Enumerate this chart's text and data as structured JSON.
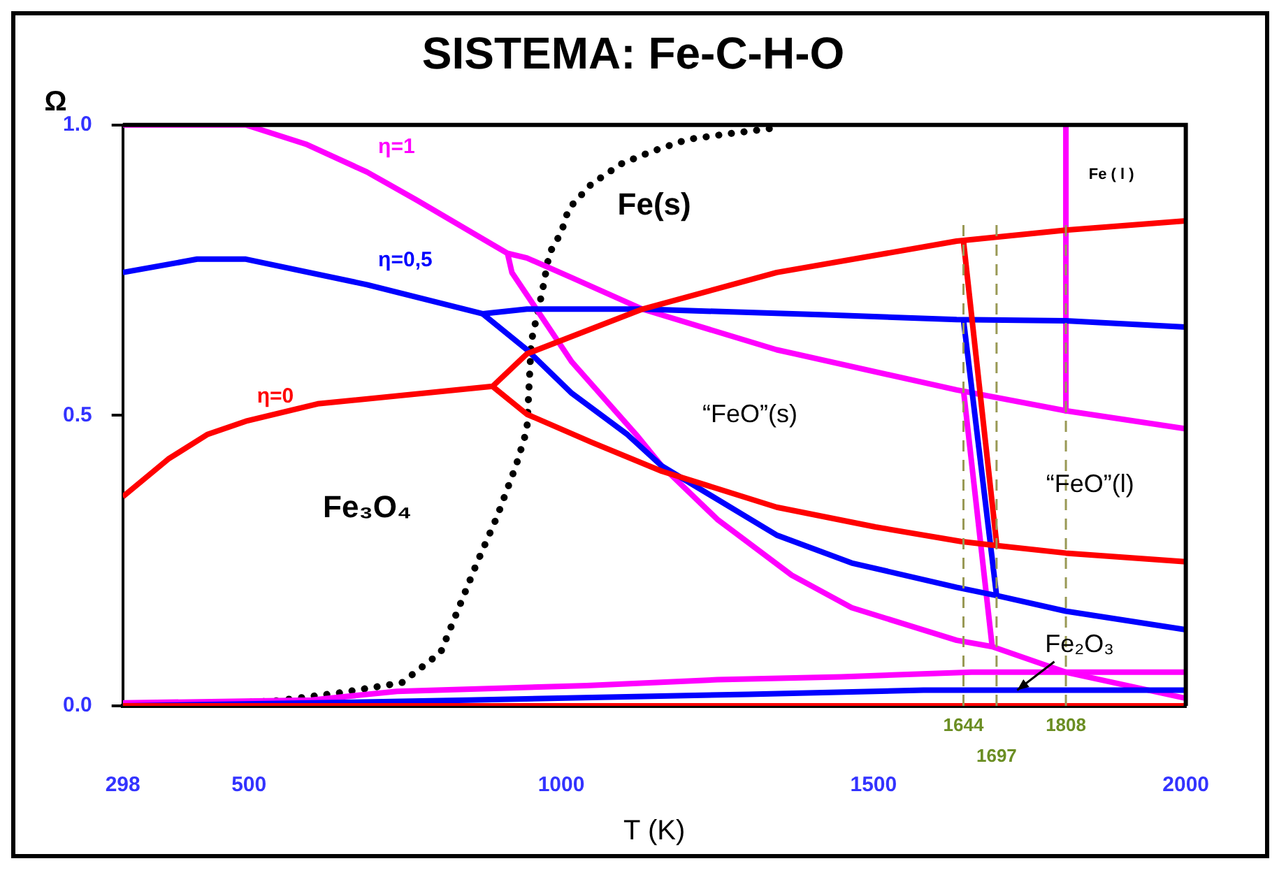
{
  "chart_data": {
    "type": "line",
    "title": "SISTEMA: Fe-C-H-O",
    "xlabel": "T (K)",
    "ylabel": "Ω",
    "xlim": [
      298,
      2000
    ],
    "xticks": [
      298,
      500,
      1000,
      1500,
      2000
    ],
    "ylim": [
      0,
      1
    ],
    "yticks": [
      {
        "value": 0,
        "label": "0.0"
      },
      {
        "value": 0.5,
        "label": "0.5"
      },
      {
        "value": 1,
        "label": "1.0"
      }
    ],
    "grid": false,
    "legend": false,
    "marker": "none",
    "line_style": "solid",
    "series": [
      {
        "name": "η=0",
        "color": "#ff0000",
        "x": [
          298,
          371,
          433,
          495,
          610,
          890,
          945,
          1130,
          1345,
          1633,
          1808,
          2000
        ],
        "values": [
          0.36,
          0.425,
          0.467,
          0.49,
          0.52,
          0.55,
          0.606,
          0.683,
          0.746,
          0.8,
          0.819,
          0.835
        ]
      },
      {
        "color": "#ff0000",
        "x": [
          890,
          945,
          1048,
          1161,
          1345,
          1503,
          1640,
          1688,
          1808,
          2000
        ],
        "values": [
          0.55,
          0.502,
          0.454,
          0.404,
          0.342,
          0.308,
          0.283,
          0.277,
          0.263,
          0.248
        ]
      },
      {
        "color": "#ff0000",
        "x": [
          1644,
          1697
        ],
        "values": [
          0.8,
          0.28
        ]
      },
      {
        "color": "#ff0000",
        "x": [
          298,
          2000
        ],
        "values": [
          0,
          0
        ]
      },
      {
        "name": "η=0,5",
        "color": "#0000ff",
        "x": [
          298,
          417,
          495,
          689,
          874,
          945,
          1130,
          1424,
          1633,
          1808,
          2000
        ],
        "values": [
          0.746,
          0.769,
          0.769,
          0.725,
          0.675,
          0.683,
          0.683,
          0.673,
          0.665,
          0.663,
          0.652
        ]
      },
      {
        "color": "#0000ff",
        "x": [
          874,
          945,
          1017,
          1106,
          1161,
          1345,
          1465,
          1633,
          1697,
          1808,
          2000
        ],
        "values": [
          0.675,
          0.613,
          0.538,
          0.467,
          0.413,
          0.294,
          0.246,
          0.204,
          0.19,
          0.163,
          0.131
        ]
      },
      {
        "color": "#0000ff",
        "x": [
          1644,
          1697
        ],
        "values": [
          0.665,
          0.19
        ]
      },
      {
        "color": "#0000ff",
        "x": [
          298,
          600,
          850,
          1300,
          1580,
          2000
        ],
        "values": [
          0,
          0.005,
          0.01,
          0.02,
          0.027,
          0.027
        ]
      },
      {
        "name": "η=1",
        "color": "#ff00ff",
        "x": [
          298,
          495,
          591,
          689,
          768,
          890,
          914,
          945,
          1017,
          1130,
          1345,
          1633,
          1808,
          2000
        ],
        "values": [
          1,
          1,
          0.967,
          0.919,
          0.871,
          0.794,
          0.779,
          0.771,
          0.737,
          0.683,
          0.613,
          0.544,
          0.508,
          0.477
        ]
      },
      {
        "color": "#ff00ff",
        "x": [
          914,
          921,
          1017,
          1120,
          1161,
          1250,
          1369,
          1465,
          1633,
          1690,
          1808,
          2000
        ],
        "values": [
          0.779,
          0.746,
          0.592,
          0.467,
          0.413,
          0.321,
          0.225,
          0.169,
          0.113,
          0.102,
          0.058,
          0.013
        ]
      },
      {
        "color": "#ff00ff",
        "x": [
          1644,
          1690
        ],
        "values": [
          0.544,
          0.102
        ]
      },
      {
        "color": "#ff00ff",
        "x": [
          1808,
          1808
        ],
        "values": [
          1,
          0.508
        ]
      },
      {
        "color": "#ff00ff",
        "x": [
          298,
          600,
          737,
          1041,
          1250,
          1448,
          1657,
          2000
        ],
        "values": [
          0.005,
          0.01,
          0.025,
          0.035,
          0.045,
          0.05,
          0.058,
          0.058
        ]
      },
      {
        "color": "#000000",
        "line_style": "dotted",
        "x": [
          442,
          538,
          649,
          745,
          807,
          836,
          865,
          897,
          928,
          945,
          952,
          969,
          981,
          1000,
          1012,
          1048,
          1096,
          1144,
          1202,
          1269,
          1336
        ],
        "values": [
          0.004,
          0.008,
          0.023,
          0.04,
          0.092,
          0.169,
          0.246,
          0.325,
          0.415,
          0.475,
          0.627,
          0.71,
          0.779,
          0.815,
          0.856,
          0.898,
          0.933,
          0.954,
          0.975,
          0.985,
          0.994
        ]
      }
    ],
    "ref_lines": [
      {
        "axis": "x",
        "value": 1644,
        "label": "1644",
        "color": "#999955",
        "line_style": "dashed"
      },
      {
        "axis": "x",
        "value": 1697,
        "label": "1697",
        "color": "#999955",
        "line_style": "dashed"
      },
      {
        "axis": "x",
        "value": 1808,
        "label": "1808",
        "color": "#999955",
        "line_style": "dashed"
      }
    ],
    "annotations": [
      "Fe(s)",
      "“FeO”(s)",
      "“FeO”(l)",
      "Fe₃O₄",
      "Fe ( l )",
      {
        "text": "Fe₂O₃",
        "x": 1730,
        "y": 0.027
      }
    ]
  }
}
